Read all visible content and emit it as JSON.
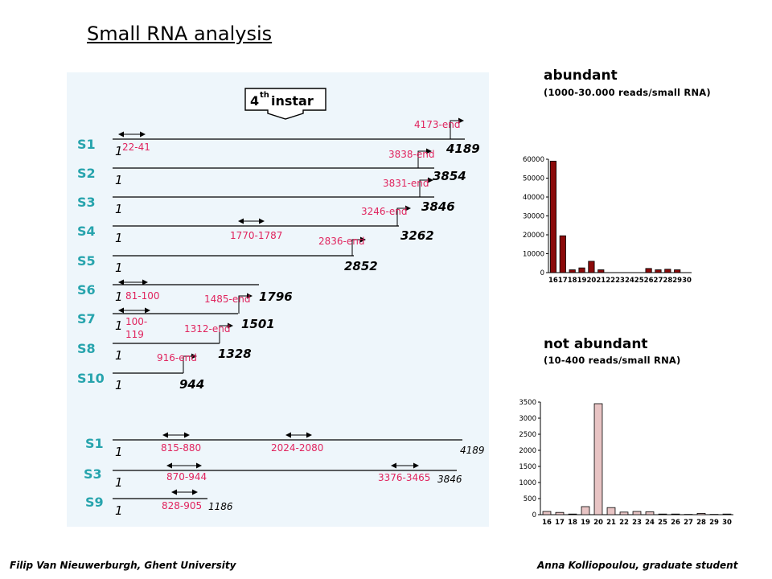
{
  "title": "Small RNA analysis",
  "stage_label": "4th instar",
  "stage_label_main": "4",
  "stage_label_sup": "th",
  "stage_label_rest": " instar",
  "segments_a": [
    {
      "name": "S1",
      "length": "4189",
      "regions": [
        {
          "label": "22-41",
          "kind": "bidir",
          "start": 22,
          "end": 41
        }
      ],
      "tail": "4173-end"
    },
    {
      "name": "S2",
      "length": "3854",
      "regions": [],
      "tail": ""
    },
    {
      "name": "S3",
      "length": "3846",
      "regions": [],
      "tail": "3831-end"
    },
    {
      "name": "S4",
      "length": "3262",
      "regions": [
        {
          "label": "1770-1787",
          "kind": "bidir"
        }
      ],
      "tail": "3246-end"
    },
    {
      "name": "S5",
      "length": "2852",
      "regions": [],
      "tail": "2836-end"
    },
    {
      "name": "S6",
      "length": "1796",
      "regions": [
        {
          "label": "81-100",
          "kind": "bidir"
        }
      ],
      "tail": ""
    },
    {
      "name": "S7",
      "length": "1501",
      "regions": [
        {
          "label": "100-\n119",
          "kind": "bidir"
        }
      ],
      "tail": "1485-end"
    },
    {
      "name": "S8",
      "length": "1328",
      "regions": [],
      "tail": "1312-end"
    },
    {
      "name": "S10",
      "length": "944",
      "regions": [],
      "tail": "916-end"
    }
  ],
  "s2_tail": "3838-end",
  "segments_b": [
    {
      "name": "S1",
      "length": "4189",
      "regions": [
        "815-880",
        "2024-2080"
      ]
    },
    {
      "name": "S3",
      "length": "3846",
      "regions": [
        "870-944",
        "3376-3465"
      ]
    },
    {
      "name": "S9",
      "length": "1186",
      "regions": [
        "828-905"
      ]
    }
  ],
  "start_label": "1",
  "abundant": {
    "title": "abundant",
    "subtitle": "(1000-30.000 reads/small RNA)"
  },
  "not_abundant": {
    "title": "not abundant",
    "subtitle": "(10-400 reads/small RNA)"
  },
  "chart_data": [
    {
      "type": "bar",
      "title": "",
      "categories": [
        "16",
        "17",
        "18",
        "19",
        "20",
        "21",
        "22",
        "23",
        "24",
        "25",
        "26",
        "27",
        "28",
        "29",
        "30"
      ],
      "values": [
        59000,
        19500,
        1500,
        2500,
        6000,
        1500,
        0,
        0,
        0,
        0,
        2200,
        1500,
        1800,
        1500,
        0
      ],
      "ylim": [
        0,
        60000
      ],
      "yticks": [
        "0",
        "10000",
        "20000",
        "30000",
        "40000",
        "50000",
        "60000"
      ],
      "bar_color": "#8b0a0a"
    },
    {
      "type": "bar",
      "title": "",
      "categories": [
        "16",
        "17",
        "18",
        "19",
        "20",
        "21",
        "22",
        "23",
        "24",
        "25",
        "26",
        "27",
        "28",
        "29",
        "30"
      ],
      "values": [
        100,
        70,
        20,
        250,
        3450,
        220,
        80,
        100,
        90,
        20,
        20,
        10,
        40,
        10,
        20
      ],
      "ylim": [
        0,
        3500
      ],
      "yticks": [
        "0",
        "500",
        "1000",
        "1500",
        "2000",
        "2500",
        "3000",
        "3500"
      ],
      "bar_color": "#e8c4c4"
    }
  ],
  "footer_left": "Filip Van Nieuwerburgh, Ghent University",
  "footer_right": "Anna Kolliopoulou, graduate student",
  "colors": {
    "segment_label": "#27a4ad",
    "annotation": "#e0245e",
    "panel_bg": "#eef6fb"
  }
}
